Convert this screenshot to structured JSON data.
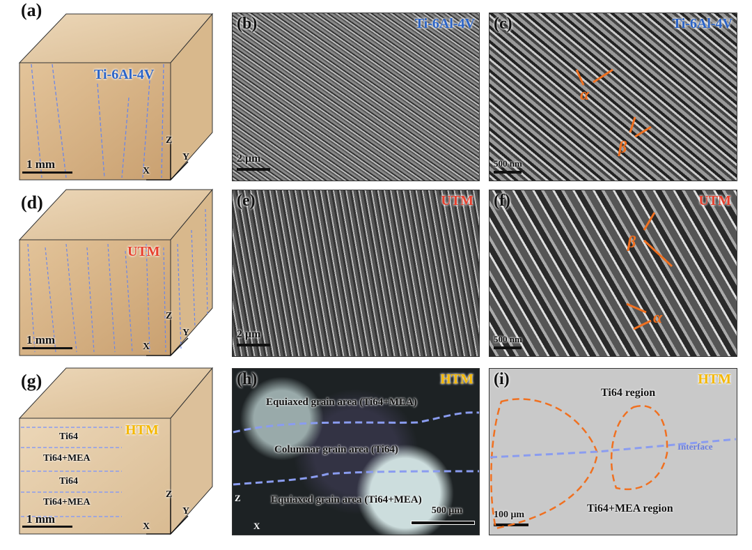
{
  "panels": {
    "a": {
      "label": "(a)",
      "material": "Ti-6Al-4V",
      "scale": "1 mm",
      "axes": [
        "Z",
        "Y",
        "X"
      ]
    },
    "b": {
      "label": "(b)",
      "material": "Ti-6Al-4V",
      "scale": "2 μm"
    },
    "c": {
      "label": "(c)",
      "material": "Ti-6Al-4V",
      "scale": "500 nm",
      "phases": [
        "α",
        "β"
      ]
    },
    "d": {
      "label": "(d)",
      "material": "UTM",
      "scale": "1 mm",
      "axes": [
        "Z",
        "Y",
        "X"
      ]
    },
    "e": {
      "label": "(e)",
      "material": "UTM",
      "scale": "2 μm"
    },
    "f": {
      "label": "(f)",
      "material": "UTM",
      "scale": "500 nm",
      "phases": [
        "β",
        "α"
      ]
    },
    "g": {
      "label": "(g)",
      "material": "HTM",
      "scale": "1 mm",
      "axes": [
        "Z",
        "Y",
        "X"
      ],
      "layers": [
        "Ti64",
        "Ti64+MEA",
        "Ti64",
        "Ti64+MEA"
      ]
    },
    "h": {
      "label": "(h)",
      "material": "HTM",
      "scale": "500 μm",
      "axes": [
        "Z",
        "X"
      ],
      "regions": [
        "Equiaxed grain area (Ti64+MEA)",
        "Columnar grain area (Ti64)",
        "Equiaxed grain area (Ti64+MEA)"
      ]
    },
    "i": {
      "label": "(i)",
      "material": "HTM",
      "scale": "100 μm",
      "regions": [
        "Ti64 region",
        "Interface",
        "Ti64+MEA region"
      ]
    }
  },
  "colors": {
    "ti64": "#2b64c8",
    "utm": "#e8402e",
    "htm": "#f5b800",
    "arrow": "#f07020",
    "dash": "#8a9cf0"
  }
}
